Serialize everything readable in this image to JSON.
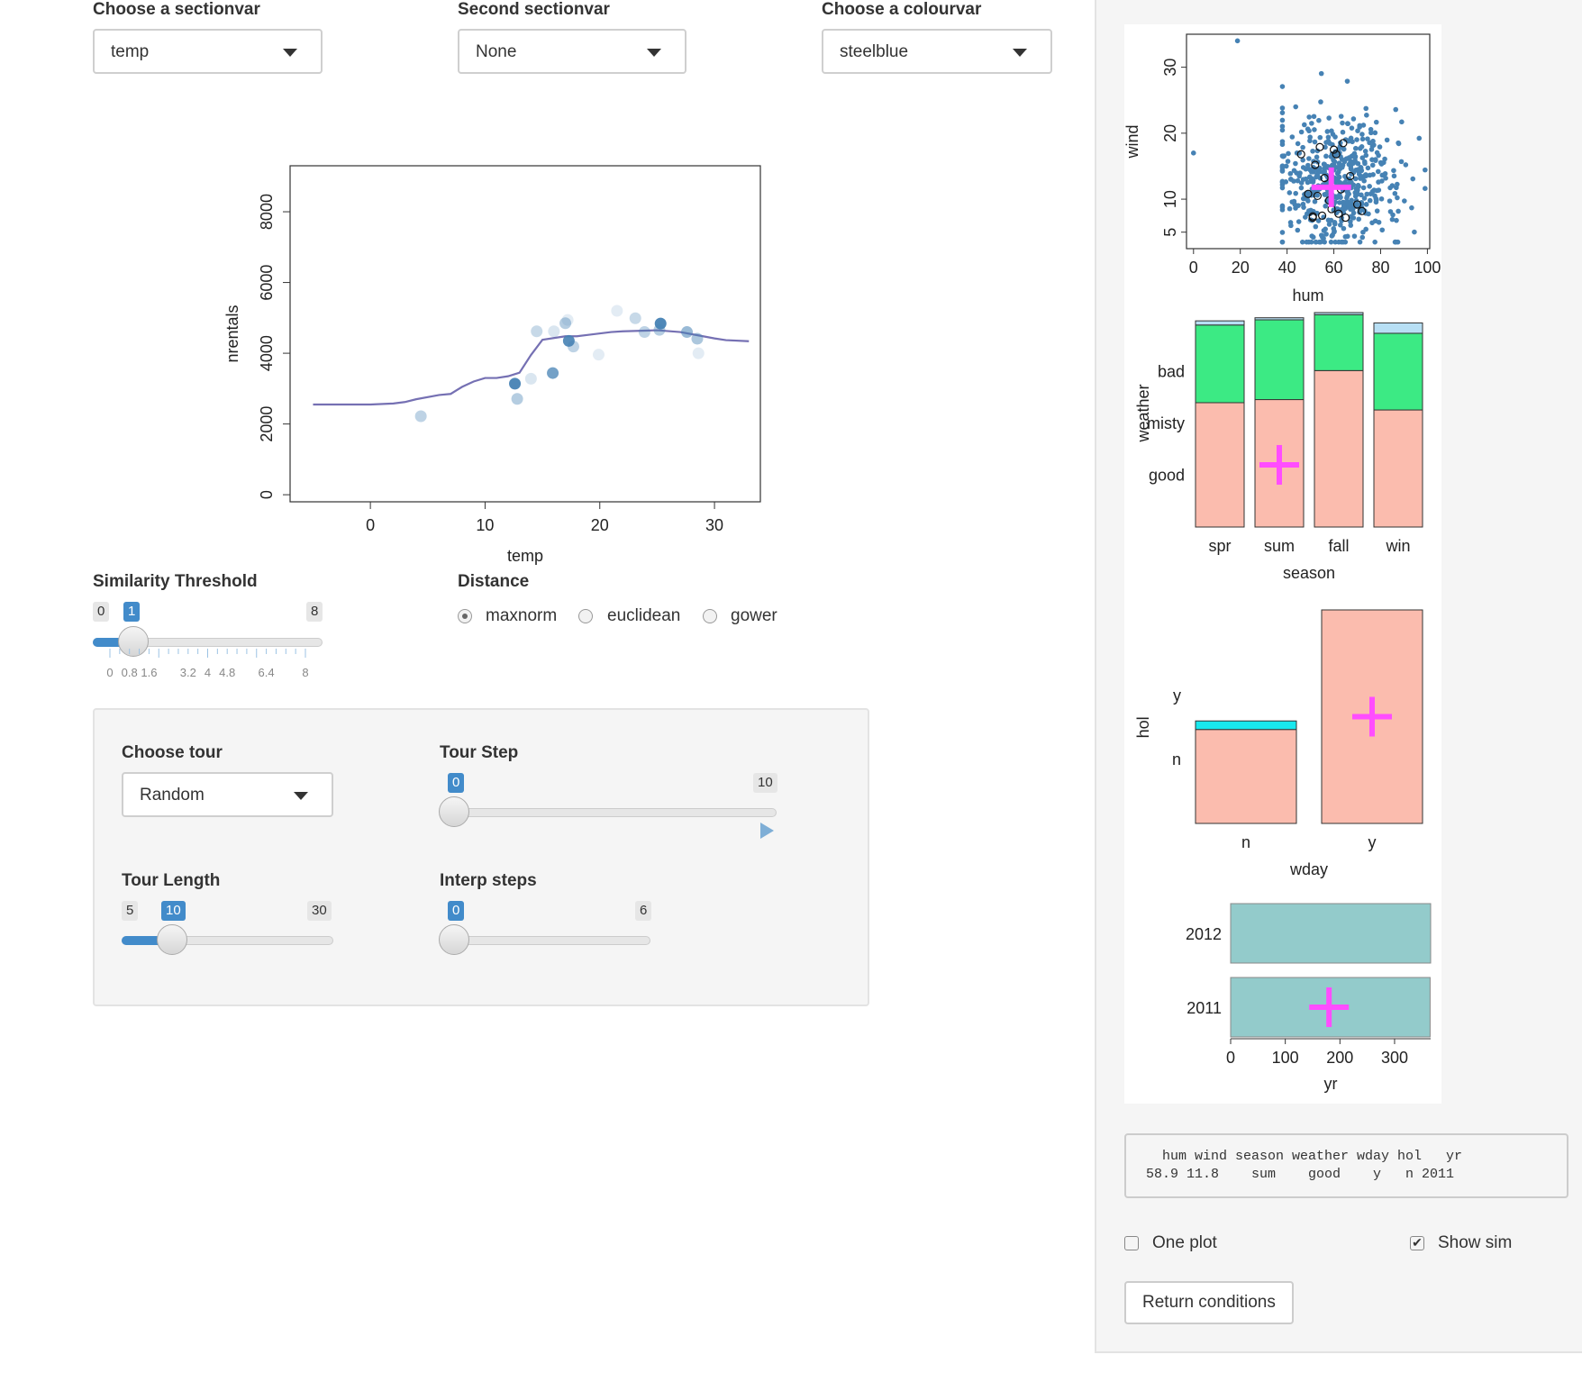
{
  "controls": {
    "section1": {
      "label": "Choose a sectionvar",
      "value": "temp"
    },
    "section2": {
      "label": "Second sectionvar",
      "value": "None"
    },
    "colour": {
      "label": "Choose a colourvar",
      "value": "steelblue"
    }
  },
  "similarity": {
    "label": "Similarity Threshold",
    "min": "0",
    "max": "8",
    "value": "1",
    "value_fraction": 0.125,
    "tick_labels": [
      "0",
      "0.8",
      "1.6",
      "3.2",
      "4",
      "4.8",
      "6.4",
      "8"
    ]
  },
  "distance": {
    "label": "Distance",
    "options": [
      "maxnorm",
      "euclidean",
      "gower"
    ],
    "selected": "maxnorm"
  },
  "tour": {
    "choose_label": "Choose tour",
    "choose_value": "Random",
    "step": {
      "label": "Tour Step",
      "min": "0",
      "max": "10",
      "value": "0",
      "value_fraction": 0
    },
    "length": {
      "label": "Tour Length",
      "min": "5",
      "max": "30",
      "value": "10",
      "value_fraction": 0.2
    },
    "interp": {
      "label": "Interp steps",
      "min": "0",
      "max": "6",
      "value": "0",
      "value_fraction": 0
    }
  },
  "summary": {
    "header": "  hum wind season weather wday hol   yr",
    "row": "58.9 11.8    sum    good    y   n 2011"
  },
  "options": {
    "one_plot": "One plot",
    "one_plot_checked": false,
    "show_sim": "Show sim",
    "show_sim_checked": true
  },
  "return_button": "Return conditions",
  "colors": {
    "accent": "#428bca",
    "line": "#7570b3",
    "steelblue": "#4682b4",
    "magenta": "#ff4dff",
    "salmon": "#fbbcae",
    "green": "#3cea84",
    "lightblue": "#b7dff4",
    "cyan": "#18e8ee",
    "teal": "#93cbcb"
  },
  "chart_data": [
    {
      "type": "scatter+line",
      "title": "",
      "xlabel": "temp",
      "ylabel": "nrentals",
      "xlim": [
        -7,
        34
      ],
      "ylim": [
        -200,
        9300
      ],
      "xticks": [
        "0",
        "10",
        "20",
        "30"
      ],
      "xtick_values": [
        0,
        10,
        20,
        30
      ],
      "yticks": [
        "0",
        "2000",
        "4000",
        "6000",
        "8000"
      ],
      "ytick_values": [
        0,
        2000,
        4000,
        6000,
        8000
      ],
      "line": {
        "x": [
          -5,
          0,
          2,
          3,
          4,
          6,
          7,
          8,
          9,
          10,
          11,
          12,
          13,
          14,
          15,
          17,
          18,
          19,
          21,
          22,
          24,
          25,
          27,
          28,
          29,
          30,
          31,
          33
        ],
        "y": [
          2550,
          2550,
          2580,
          2620,
          2700,
          2820,
          2850,
          3050,
          3200,
          3300,
          3300,
          3350,
          3450,
          3950,
          4380,
          4480,
          4480,
          4520,
          4600,
          4620,
          4640,
          4650,
          4600,
          4540,
          4480,
          4420,
          4370,
          4340
        ]
      },
      "points": {
        "x": [
          4.4,
          12.6,
          12.8,
          14,
          14.5,
          15.9,
          16,
          17,
          17.2,
          17.3,
          17.7,
          19.9,
          21.5,
          23.1,
          23.9,
          25.2,
          25.3,
          27.6,
          28.5,
          28.6
        ],
        "y": [
          2220,
          3140,
          2710,
          3280,
          4620,
          3440,
          4620,
          4850,
          4940,
          4350,
          4190,
          3960,
          5200,
          4990,
          4600,
          4660,
          4840,
          4600,
          4410,
          4000
        ],
        "alpha": [
          0.35,
          0.95,
          0.4,
          0.2,
          0.3,
          0.75,
          0.2,
          0.4,
          0.15,
          0.9,
          0.35,
          0.15,
          0.15,
          0.3,
          0.35,
          0.4,
          0.95,
          0.55,
          0.45,
          0.15
        ]
      }
    },
    {
      "type": "scatter",
      "xlabel": "hum",
      "ylabel": "wind",
      "xlim": [
        -3,
        101
      ],
      "ylim": [
        2.5,
        35
      ],
      "xticks": [
        "0",
        "20",
        "40",
        "60",
        "80",
        "100"
      ],
      "xtick_values": [
        0,
        20,
        40,
        60,
        80,
        100
      ],
      "yticks": [
        "5",
        "10",
        "20",
        "30"
      ],
      "ytick_values": [
        5,
        10,
        20,
        30
      ],
      "center": {
        "hum": 58.9,
        "wind": 11.8
      },
      "cloud": {
        "n": 520,
        "hum_mean": 62,
        "hum_sd": 14,
        "wind_mean": 12.5,
        "wind_sd": 5
      },
      "outliers": {
        "hum": [
          0,
          18.8
        ],
        "wind": [
          17,
          34
        ]
      },
      "similar_points": {
        "hum": [
          46,
          49,
          51,
          52,
          53,
          55,
          56,
          58,
          59,
          60,
          61,
          62,
          63,
          64,
          65,
          67,
          70,
          72,
          51,
          54
        ],
        "wind": [
          16.8,
          10.8,
          7.2,
          15.2,
          10.5,
          7.5,
          13.2,
          9.8,
          8.5,
          17.5,
          16.8,
          7.8,
          11.5,
          18.5,
          7.2,
          13.5,
          9.2,
          8.2,
          7.4,
          17.9
        ]
      }
    },
    {
      "type": "stacked-bar",
      "xlabel": "season",
      "ylabel": "weather",
      "categories": [
        "spr",
        "sum",
        "fall",
        "win"
      ],
      "series": [
        {
          "name": "good",
          "values": [
            0.6,
            0.615,
            0.755,
            0.565
          ]
        },
        {
          "name": "misty",
          "values": [
            0.375,
            0.385,
            0.27,
            0.37
          ]
        },
        {
          "name": "bad",
          "values": [
            0.02,
            0.01,
            0.01,
            0.05
          ]
        }
      ],
      "series_colors": [
        "#fbbcae",
        "#3cea84",
        "#b7dff4"
      ],
      "marker": {
        "category": "sum",
        "level": 0.3
      }
    },
    {
      "type": "stacked-bar",
      "xlabel": "wday",
      "ylabel": "hol",
      "categories": [
        "n",
        "y"
      ],
      "series": [
        {
          "name": "n",
          "values": [
            0.44,
            1.0
          ]
        },
        {
          "name": "y",
          "values": [
            0.04,
            0.0
          ]
        }
      ],
      "series_colors": [
        "#fbbcae",
        "#18e8ee"
      ],
      "marker": {
        "category": "y",
        "level": 0.5
      }
    },
    {
      "type": "bar",
      "orientation": "horizontal",
      "xlabel": "yr",
      "ylabel": "",
      "categories": [
        "2012",
        "2011"
      ],
      "values": [
        366,
        365
      ],
      "xlim": [
        0,
        366
      ],
      "xticks": [
        "0",
        "100",
        "200",
        "300"
      ],
      "xtick_values": [
        0,
        100,
        200,
        300
      ],
      "marker": {
        "category": "2011",
        "value": 180
      }
    }
  ]
}
